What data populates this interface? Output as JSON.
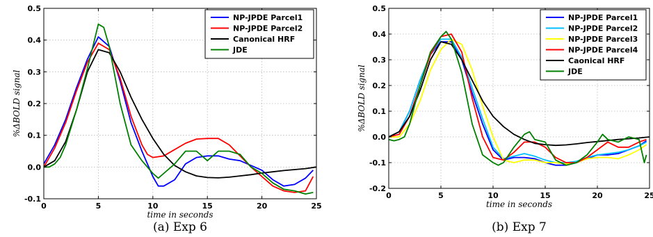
{
  "chart_data": [
    {
      "type": "line",
      "caption": "(a) Exp 6",
      "xlabel": "time in seconds",
      "ylabel": "%ΔBOLD signal",
      "xlim": [
        0,
        25
      ],
      "ylim": [
        -0.1,
        0.5
      ],
      "xticks": [
        0,
        5,
        10,
        15,
        20,
        25
      ],
      "yticks": [
        -0.1,
        0.0,
        0.1,
        0.2,
        0.3,
        0.4,
        0.5
      ],
      "grid": true,
      "legend_position": "top-right",
      "series": [
        {
          "name": "NP-JPDE Parcel1",
          "color": "#0000ff",
          "x": [
            0,
            1,
            2,
            3,
            4,
            5,
            6,
            7,
            8,
            9,
            10,
            10.5,
            11,
            12,
            13,
            14,
            15,
            16,
            17,
            18,
            19,
            20,
            21,
            22,
            23,
            24,
            24.7
          ],
          "y": [
            0.01,
            0.07,
            0.15,
            0.25,
            0.34,
            0.41,
            0.38,
            0.27,
            0.14,
            0.05,
            -0.03,
            -0.06,
            -0.06,
            -0.04,
            0.01,
            0.03,
            0.035,
            0.035,
            0.025,
            0.02,
            0.005,
            -0.01,
            -0.04,
            -0.06,
            -0.055,
            -0.035,
            -0.01
          ]
        },
        {
          "name": "NP-JPDE Parcel2",
          "color": "#ff0000",
          "x": [
            0,
            1,
            2,
            3,
            4,
            5,
            6,
            7,
            8,
            9,
            9.5,
            10,
            11,
            12,
            13,
            14,
            15,
            16,
            17,
            18,
            19,
            20,
            21,
            22,
            23,
            24,
            24.7
          ],
          "y": [
            0.0,
            0.06,
            0.14,
            0.24,
            0.33,
            0.39,
            0.37,
            0.28,
            0.16,
            0.07,
            0.04,
            0.03,
            0.035,
            0.055,
            0.075,
            0.088,
            0.09,
            0.09,
            0.07,
            0.035,
            0.0,
            -0.03,
            -0.06,
            -0.075,
            -0.08,
            -0.075,
            -0.03
          ]
        },
        {
          "name": "Canonical HRF",
          "color": "#000000",
          "x": [
            0,
            1,
            2,
            3,
            4,
            5,
            6,
            7,
            8,
            9,
            10,
            11,
            12,
            13,
            14,
            15,
            16,
            17,
            18,
            19,
            20,
            21,
            22,
            23,
            24,
            25
          ],
          "y": [
            0.0,
            0.02,
            0.08,
            0.18,
            0.3,
            0.37,
            0.36,
            0.3,
            0.22,
            0.15,
            0.09,
            0.04,
            0.005,
            -0.015,
            -0.028,
            -0.033,
            -0.034,
            -0.032,
            -0.028,
            -0.024,
            -0.019,
            -0.015,
            -0.011,
            -0.008,
            -0.005,
            0.0
          ]
        },
        {
          "name": "JDE",
          "color": "#008000",
          "x": [
            0,
            0.5,
            1,
            1.5,
            2,
            3,
            4,
            5,
            5.5,
            6,
            7,
            8,
            9,
            10,
            10.5,
            11,
            12,
            13,
            14,
            15,
            16,
            17,
            18,
            19,
            20,
            21,
            22,
            23,
            24,
            24.7
          ],
          "y": [
            0.0,
            0.0,
            0.01,
            0.03,
            0.07,
            0.18,
            0.31,
            0.45,
            0.44,
            0.38,
            0.2,
            0.07,
            0.02,
            -0.02,
            -0.035,
            -0.02,
            0.01,
            0.05,
            0.05,
            0.02,
            0.05,
            0.05,
            0.04,
            0.0,
            -0.02,
            -0.05,
            -0.07,
            -0.075,
            -0.085,
            -0.08
          ]
        }
      ]
    },
    {
      "type": "line",
      "caption": "(b) Exp 7",
      "xlabel": "time in seconds",
      "ylabel": "%ΔBOLD signal",
      "xlim": [
        0,
        25
      ],
      "ylim": [
        -0.2,
        0.5
      ],
      "xticks": [
        0,
        5,
        10,
        15,
        20,
        25
      ],
      "yticks": [
        -0.2,
        -0.1,
        0.0,
        0.1,
        0.2,
        0.3,
        0.4,
        0.5
      ],
      "grid": true,
      "legend_position": "top-right",
      "series": [
        {
          "name": "NP-JPDE Parcel1",
          "color": "#0000ff",
          "x": [
            0,
            1,
            2,
            3,
            4,
            5,
            6,
            7,
            8,
            9,
            10,
            11,
            12,
            13,
            14,
            15,
            16,
            17,
            18,
            19,
            20,
            21,
            22,
            23,
            24,
            24.7
          ],
          "y": [
            0.0,
            0.02,
            0.1,
            0.22,
            0.32,
            0.37,
            0.37,
            0.3,
            0.17,
            0.05,
            -0.05,
            -0.09,
            -0.08,
            -0.08,
            -0.085,
            -0.1,
            -0.11,
            -0.11,
            -0.1,
            -0.085,
            -0.07,
            -0.07,
            -0.065,
            -0.05,
            -0.035,
            -0.015
          ]
        },
        {
          "name": "NP-JPDE Parcel2",
          "color": "#00bfff",
          "x": [
            0,
            1,
            2,
            3,
            4,
            5,
            6,
            7,
            8,
            9,
            10,
            11,
            12,
            13,
            14,
            15,
            16,
            17,
            18,
            19,
            20,
            21,
            22,
            23,
            24,
            24.7
          ],
          "y": [
            0.0,
            0.02,
            0.1,
            0.22,
            0.32,
            0.38,
            0.38,
            0.31,
            0.19,
            0.07,
            -0.04,
            -0.085,
            -0.075,
            -0.065,
            -0.075,
            -0.09,
            -0.1,
            -0.1,
            -0.095,
            -0.08,
            -0.07,
            -0.065,
            -0.06,
            -0.05,
            -0.035,
            -0.02
          ]
        },
        {
          "name": "NP-JPDE Parcel3",
          "color": "#ffff00",
          "x": [
            0,
            1,
            2,
            3,
            4,
            5,
            6,
            7,
            8,
            9,
            10,
            11,
            12,
            13,
            14,
            15,
            16,
            17,
            18,
            19,
            20,
            21,
            22,
            23,
            24,
            24.7
          ],
          "y": [
            0.0,
            0.0,
            0.05,
            0.14,
            0.26,
            0.34,
            0.38,
            0.36,
            0.26,
            0.12,
            0.0,
            -0.09,
            -0.1,
            -0.09,
            -0.09,
            -0.1,
            -0.1,
            -0.105,
            -0.1,
            -0.085,
            -0.08,
            -0.08,
            -0.085,
            -0.07,
            -0.05,
            -0.03
          ]
        },
        {
          "name": "NP-JPDE Parcel4",
          "color": "#ff0000",
          "x": [
            0,
            1,
            2,
            3,
            4,
            5,
            6,
            7,
            8,
            9,
            10,
            11,
            12,
            13,
            14,
            15,
            16,
            17,
            18,
            19,
            20,
            21,
            22,
            23,
            24,
            24.7
          ],
          "y": [
            0.0,
            0.01,
            0.08,
            0.2,
            0.32,
            0.39,
            0.4,
            0.33,
            0.15,
            0.0,
            -0.08,
            -0.09,
            -0.06,
            -0.02,
            -0.02,
            -0.04,
            -0.08,
            -0.1,
            -0.1,
            -0.08,
            -0.05,
            -0.02,
            -0.04,
            -0.04,
            -0.02,
            -0.01
          ]
        },
        {
          "name": "Caonical HRF",
          "color": "#000000",
          "x": [
            0,
            1,
            2,
            3,
            4,
            5,
            6,
            7,
            8,
            9,
            10,
            11,
            12,
            13,
            14,
            15,
            16,
            17,
            18,
            19,
            20,
            21,
            22,
            23,
            24,
            25
          ],
          "y": [
            0.0,
            0.02,
            0.08,
            0.18,
            0.3,
            0.37,
            0.36,
            0.3,
            0.22,
            0.14,
            0.08,
            0.04,
            0.01,
            -0.01,
            -0.025,
            -0.03,
            -0.033,
            -0.031,
            -0.027,
            -0.022,
            -0.018,
            -0.014,
            -0.01,
            -0.007,
            -0.004,
            0.0
          ]
        },
        {
          "name": "JDE",
          "color": "#008000",
          "x": [
            0,
            0.5,
            1,
            1.5,
            2,
            3,
            4,
            5,
            5.5,
            6,
            7,
            8,
            9,
            10,
            10.5,
            11,
            12,
            13,
            13.5,
            14,
            15,
            16,
            17,
            18,
            19,
            20,
            20.5,
            21,
            22,
            23,
            24,
            24.5,
            24.7
          ],
          "y": [
            -0.01,
            -0.015,
            -0.01,
            0.0,
            0.05,
            0.2,
            0.33,
            0.39,
            0.41,
            0.38,
            0.25,
            0.05,
            -0.07,
            -0.1,
            -0.11,
            -0.1,
            -0.04,
            0.01,
            0.02,
            -0.01,
            -0.02,
            -0.09,
            -0.11,
            -0.1,
            -0.07,
            -0.02,
            0.01,
            -0.01,
            -0.02,
            0.0,
            -0.01,
            -0.1,
            -0.07
          ]
        }
      ]
    }
  ]
}
